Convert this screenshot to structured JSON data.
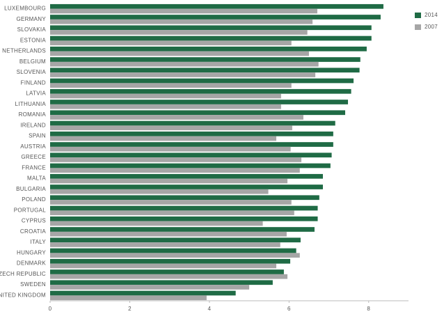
{
  "chart_data": {
    "type": "hbar",
    "categories": [
      "LUXEMBOURG",
      "GERMANY",
      "SLOVAKIA",
      "ESTONIA",
      "NETHERLANDS",
      "BELGIUM",
      "SLOVENIA",
      "FINLAND",
      "LATVIA",
      "LITHUANIA",
      "ROMANIA",
      "IRELAND",
      "SPAIN",
      "AUSTRIA",
      "GREECE",
      "FRANCE",
      "MALTA",
      "BULGARIA",
      "POLAND",
      "PORTUGAL",
      "CYPRUS",
      "CROATIA",
      "ITALY",
      "HUNGARY",
      "DENMARK",
      "CZECH REPUBLIC",
      "SWEDEN",
      "UNITED KINGDOM"
    ],
    "series": [
      {
        "name": "2014",
        "color": "#1f6b45",
        "values": [
          8.37,
          8.3,
          8.07,
          8.07,
          7.95,
          7.79,
          7.77,
          7.62,
          7.56,
          7.48,
          7.41,
          7.16,
          7.11,
          7.11,
          7.07,
          7.04,
          6.85,
          6.85,
          6.76,
          6.72,
          6.72,
          6.64,
          6.29,
          6.18,
          6.03,
          5.87,
          5.59,
          4.66
        ]
      },
      {
        "name": "2007",
        "color": "#a6a6a6",
        "values": [
          6.71,
          6.59,
          6.46,
          6.06,
          6.5,
          6.74,
          6.66,
          6.06,
          5.8,
          5.8,
          6.36,
          6.08,
          5.68,
          6.04,
          6.31,
          6.27,
          5.96,
          5.48,
          6.06,
          6.13,
          5.34,
          5.94,
          5.78,
          6.27,
          5.68,
          5.96,
          5.0,
          3.93
        ]
      }
    ],
    "xlim": [
      0,
      9
    ],
    "xticks": [
      0,
      2,
      4,
      6,
      8
    ],
    "legend": "top-right",
    "grid": false
  }
}
